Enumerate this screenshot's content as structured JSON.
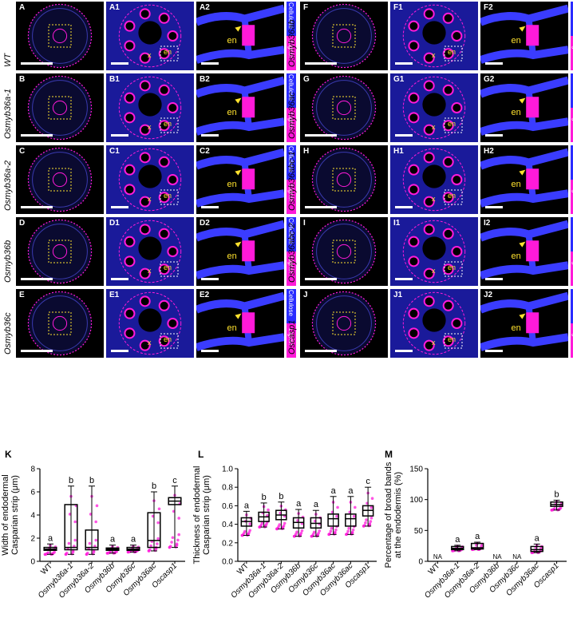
{
  "colors": {
    "cellulose": "#2a2cff",
    "lignin": "#ff1ad9",
    "annotation": "#ffe22e",
    "box_outline": "#000000",
    "fill_magenta": "#ff1ad9"
  },
  "stain_labels": {
    "cellulose": "Cellulose",
    "lignin": "Lignin"
  },
  "annotations": {
    "en": "en",
    "x": "x"
  },
  "rows_left": [
    {
      "genotype": "WT",
      "labels": [
        "A",
        "A1",
        "A2"
      ]
    },
    {
      "genotype": "Osmyb36a-1",
      "labels": [
        "B",
        "B1",
        "B2"
      ]
    },
    {
      "genotype": "Osmyb36a-2",
      "labels": [
        "C",
        "C1",
        "C2"
      ]
    },
    {
      "genotype": "Osmyb36b",
      "labels": [
        "D",
        "D1",
        "D2"
      ]
    },
    {
      "genotype": "Osmyb36c",
      "labels": [
        "E",
        "E1",
        "E2"
      ]
    }
  ],
  "rows_right": [
    {
      "genotype": "Osmyb36ab",
      "labels": [
        "F",
        "F1",
        "F2"
      ]
    },
    {
      "genotype": "Osmyb36ac",
      "labels": [
        "G",
        "G1",
        "G2"
      ]
    },
    {
      "genotype": "Osmyb36abc-1",
      "labels": [
        "H",
        "H1",
        "H2"
      ]
    },
    {
      "genotype": "Osmyb36abc-2",
      "labels": [
        "I",
        "I1",
        "I2"
      ]
    },
    {
      "genotype": "Oscasp1",
      "labels": [
        "J",
        "J1",
        "J2"
      ]
    }
  ],
  "chart_data": [
    {
      "panel": "K",
      "type": "box",
      "ylabel": "Width of endodermal Casparian strip (μm)",
      "ylabel_lines": [
        "Width of endodermal",
        "Casparian strip (μm)"
      ],
      "categories": [
        "WT",
        "Osmyb36a-1",
        "Osmyb36a-2",
        "Osmyb36b",
        "Osmyb36c",
        "Osmyb36ac",
        "Oscasp1"
      ],
      "ylim": [
        0,
        8
      ],
      "yticks": [
        "0",
        "2",
        "4",
        "6",
        "8"
      ],
      "boxes": [
        {
          "min": 0.6,
          "q1": 0.95,
          "median": 1.05,
          "q3": 1.2,
          "max": 1.5
        },
        {
          "min": 0.6,
          "q1": 1.0,
          "median": 1.2,
          "q3": 4.9,
          "max": 6.5
        },
        {
          "min": 0.6,
          "q1": 1.0,
          "median": 1.2,
          "q3": 2.7,
          "max": 6.5
        },
        {
          "min": 0.7,
          "q1": 0.95,
          "median": 1.05,
          "q3": 1.15,
          "max": 1.4
        },
        {
          "min": 0.8,
          "q1": 0.95,
          "median": 1.05,
          "q3": 1.2,
          "max": 1.4
        },
        {
          "min": 0.9,
          "q1": 1.2,
          "median": 1.8,
          "q3": 4.2,
          "max": 6.0
        },
        {
          "min": 1.2,
          "q1": 4.9,
          "median": 5.2,
          "q3": 5.5,
          "max": 6.5
        }
      ],
      "sig_letters": [
        "a",
        "b",
        "b",
        "a",
        "a",
        "b",
        "c"
      ]
    },
    {
      "panel": "L",
      "type": "box",
      "ylabel": "Thickness of endodermal Casparian strip (μm)",
      "ylabel_lines": [
        "Thickness of endodermal",
        "Casparian strip (μm)"
      ],
      "categories": [
        "WT",
        "Osmyb36a-1",
        "Osmyb36a-2",
        "Osmyb36b",
        "Osmyb36c",
        "Osmyb36ac",
        "Osmyb36ac",
        "Oscasp1"
      ],
      "ylim": [
        0.0,
        1.0
      ],
      "yticks": [
        "0.0",
        "0.2",
        "0.4",
        "0.6",
        "0.8",
        "1.0"
      ],
      "boxes": [
        {
          "min": 0.28,
          "q1": 0.38,
          "median": 0.43,
          "q3": 0.47,
          "max": 0.54
        },
        {
          "min": 0.37,
          "q1": 0.43,
          "median": 0.48,
          "q3": 0.53,
          "max": 0.63
        },
        {
          "min": 0.35,
          "q1": 0.45,
          "median": 0.5,
          "q3": 0.55,
          "max": 0.64
        },
        {
          "min": 0.27,
          "q1": 0.36,
          "median": 0.42,
          "q3": 0.47,
          "max": 0.56
        },
        {
          "min": 0.27,
          "q1": 0.36,
          "median": 0.41,
          "q3": 0.47,
          "max": 0.55
        },
        {
          "min": 0.29,
          "q1": 0.38,
          "median": 0.46,
          "q3": 0.51,
          "max": 0.7
        },
        {
          "min": 0.29,
          "q1": 0.38,
          "median": 0.46,
          "q3": 0.51,
          "max": 0.7
        },
        {
          "min": 0.38,
          "q1": 0.49,
          "median": 0.55,
          "q3": 0.6,
          "max": 0.8
        }
      ],
      "sig_letters": [
        "a",
        "b",
        "b",
        "a",
        "a",
        "a",
        "a",
        "c"
      ]
    },
    {
      "panel": "M",
      "type": "box",
      "ylabel": "Percentage of broad bands at the endodermis (%)",
      "ylabel_lines": [
        "Percentage of broad bands",
        "at the endodermis (%)"
      ],
      "categories": [
        "WT",
        "Osmyb36a-1",
        "Osmyb36a-2",
        "Osmyb36b",
        "Osmyb36c",
        "Osmyb36ac",
        "Oscasp1"
      ],
      "ylim": [
        0,
        150
      ],
      "yticks": [
        "0",
        "50",
        "100",
        "150"
      ],
      "boxes": [
        null,
        {
          "min": 17,
          "q1": 19,
          "median": 21,
          "q3": 24,
          "max": 26
        },
        {
          "min": 19,
          "q1": 20,
          "median": 22,
          "q3": 29,
          "max": 31
        },
        null,
        null,
        {
          "min": 14,
          "q1": 16,
          "median": 19,
          "q3": 24,
          "max": 28
        },
        {
          "min": 83,
          "q1": 89,
          "median": 92,
          "q3": 96,
          "max": 99
        }
      ],
      "na_labels": [
        "NA",
        "",
        "",
        "NA",
        "NA",
        "",
        ""
      ],
      "sig_letters": [
        "",
        "a",
        "a",
        "",
        "",
        "a",
        "b"
      ]
    }
  ]
}
